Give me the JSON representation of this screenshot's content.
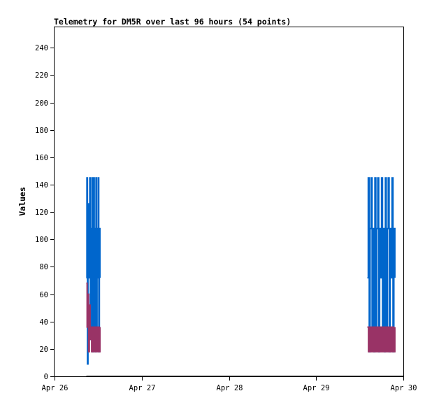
{
  "chart_data": {
    "type": "line",
    "title": "Telemetry for DM5R over last 96 hours (54 points)",
    "xlabel": "",
    "ylabel": "Values",
    "x_ticks": [
      "Apr 26",
      "Apr 27",
      "Apr 28",
      "Apr 29",
      "Apr 30"
    ],
    "y_ticks": [
      "0",
      "20",
      "40",
      "60",
      "80",
      "100",
      "120",
      "140",
      "160",
      "180",
      "200",
      "220",
      "240"
    ],
    "xlim": [
      "Apr 26 00:00",
      "Apr 30 00:00"
    ],
    "ylim": [
      0,
      255
    ],
    "grid": false,
    "legend": "none",
    "series": [
      {
        "color": "#0066cc",
        "bursts": [
          {
            "start": "Apr 26 08:45",
            "end": "Apr 26 12:30",
            "values": [
              72,
              145,
              9,
              126,
              72,
              90,
              145,
              27,
              108,
              36,
              145,
              18,
              108,
              145,
              36,
              108,
              18,
              145,
              36,
              108,
              72,
              145,
              18,
              108,
              72
            ]
          },
          {
            "start": "Apr 29 14:05",
            "end": "Apr 29 21:40",
            "values": [
              72,
              145,
              18,
              108,
              145,
              36,
              108,
              18,
              145,
              36,
              108,
              145,
              18,
              108,
              72,
              145,
              36,
              108,
              18,
              145,
              36,
              108,
              145,
              18,
              108,
              72,
              145,
              18,
              108,
              72
            ]
          }
        ]
      },
      {
        "color": "#993366",
        "bursts": [
          {
            "start": "Apr 26 08:45",
            "end": "Apr 26 12:30",
            "values": [
              68,
              36,
              60,
              18,
              52,
              27,
              36,
              18,
              36,
              18,
              36,
              18,
              36,
              18,
              36,
              18,
              36,
              18,
              36
            ]
          },
          {
            "start": "Apr 29 14:05",
            "end": "Apr 29 21:40",
            "values": [
              36,
              18,
              36,
              18,
              36,
              18,
              36,
              18,
              36,
              18,
              36,
              18,
              36,
              18,
              36,
              18,
              36,
              18,
              36,
              18,
              36,
              18,
              36,
              18,
              36
            ]
          }
        ]
      },
      {
        "color": "#000000",
        "points": [
          [
            "Apr 26 08:45",
            0
          ],
          [
            "Apr 30 00:00",
            0
          ]
        ]
      }
    ]
  }
}
